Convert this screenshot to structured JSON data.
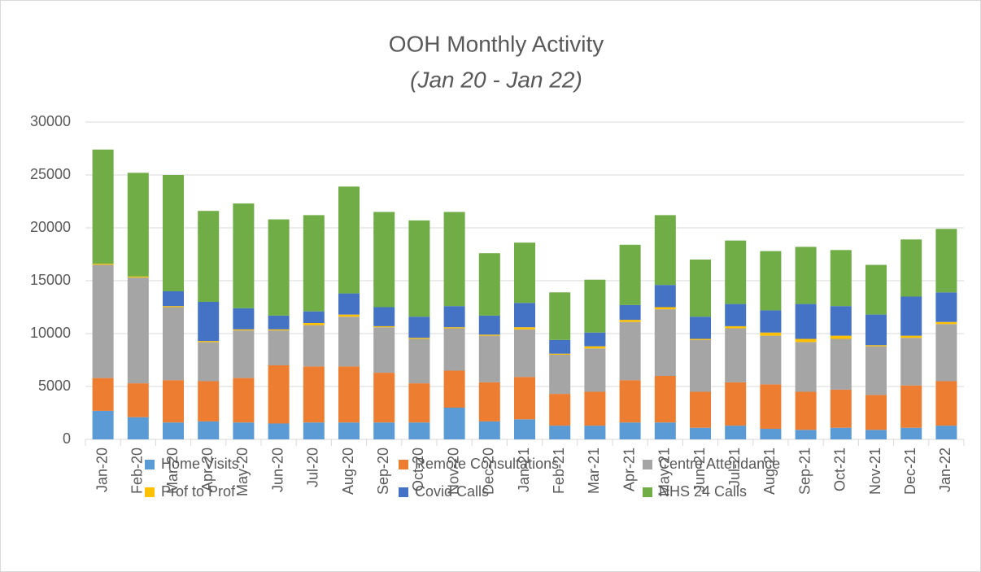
{
  "chart_data": {
    "type": "stacked_bar",
    "title": "OOH Monthly Activity",
    "subtitle": "(Jan 20 - Jan 22)",
    "categories": [
      "Jan-20",
      "Feb-20",
      "Mar-20",
      "Apr-20",
      "May-20",
      "Jun-20",
      "Jul-20",
      "Aug-20",
      "Sep-20",
      "Oct-20",
      "Nov-20",
      "Dec-20",
      "Jan-21",
      "Feb-21",
      "Mar-21",
      "Apr-21",
      "May-21",
      "Jun-21",
      "Jul-21",
      "Aug-21",
      "Sep-21",
      "Oct-21",
      "Nov-21",
      "Dec-21",
      "Jan-22"
    ],
    "series": [
      {
        "name": "Home Visits",
        "color": "#5b9bd5",
        "values": [
          2700,
          2100,
          1600,
          1700,
          1600,
          1500,
          1600,
          1600,
          1600,
          1600,
          3000,
          1700,
          1900,
          1300,
          1300,
          1600,
          1600,
          1100,
          1300,
          1000,
          900,
          1100,
          900,
          1100,
          1300
        ]
      },
      {
        "name": " Remote Consultations",
        "color": "#ed7d31",
        "values": [
          3100,
          3200,
          4000,
          3800,
          4200,
          5500,
          5300,
          5300,
          4700,
          3700,
          3500,
          3700,
          4000,
          3000,
          3200,
          4000,
          4400,
          3400,
          4100,
          4200,
          3600,
          3600,
          3300,
          4000,
          4200
        ]
      },
      {
        "name": "Centre Attendance",
        "color": "#a5a5a5",
        "values": [
          10700,
          10000,
          6900,
          3700,
          4500,
          3300,
          3900,
          4700,
          4300,
          4200,
          4000,
          4400,
          4500,
          3700,
          4100,
          5500,
          6300,
          4900,
          5100,
          4600,
          4700,
          4800,
          4600,
          4500,
          5400
        ]
      },
      {
        "name": "Prof to Prof",
        "color": "#ffc000",
        "values": [
          100,
          100,
          100,
          100,
          100,
          100,
          200,
          200,
          100,
          100,
          100,
          100,
          200,
          100,
          200,
          200,
          200,
          100,
          200,
          300,
          300,
          300,
          100,
          200,
          200
        ]
      },
      {
        "name": "Covid Calls",
        "color": "#4472c4",
        "values": [
          0,
          0,
          1400,
          3700,
          2000,
          1300,
          1100,
          2000,
          1800,
          2000,
          2000,
          1800,
          2300,
          1300,
          1300,
          1400,
          2100,
          2100,
          2100,
          2100,
          3300,
          2800,
          2900,
          3700,
          2800
        ]
      },
      {
        "name": "NHS 24 Calls",
        "color": "#70ad47",
        "values": [
          10800,
          9800,
          11000,
          8600,
          9900,
          9100,
          9100,
          10100,
          9000,
          9100,
          8900,
          5900,
          5700,
          4500,
          5000,
          5700,
          6600,
          5400,
          6000,
          5600,
          5400,
          5300,
          4700,
          5400,
          6000
        ]
      }
    ],
    "ylim": [
      0,
      30000
    ],
    "yticks": [
      0,
      5000,
      10000,
      15000,
      20000,
      25000,
      30000
    ],
    "grid": true
  }
}
